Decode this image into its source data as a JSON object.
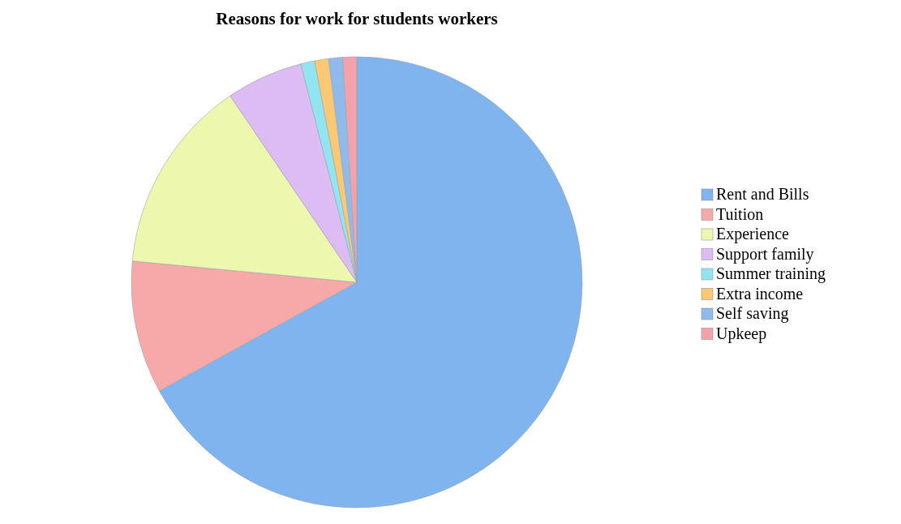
{
  "chart_data": {
    "type": "pie",
    "title": "Reasons for work for students workers",
    "categories": [
      "Rent and Bills",
      "Tuition",
      "Experience",
      "Support family",
      "Summer training",
      "Extra income",
      "Self saving",
      "Upkeep"
    ],
    "values": [
      67,
      9.5,
      14,
      5.5,
      1,
      1,
      1,
      1
    ],
    "colors": [
      "#7fb4ee",
      "#f7a8a8",
      "#eef7ae",
      "#dcbcf2",
      "#92e4f0",
      "#fbc873",
      "#8fbbec",
      "#f3a2aa"
    ],
    "legend": "right"
  }
}
